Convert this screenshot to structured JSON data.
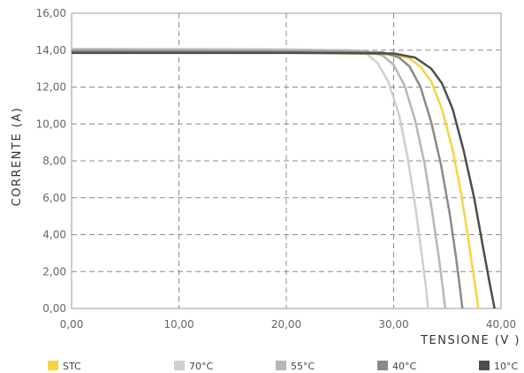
{
  "chart_data": {
    "type": "line",
    "title": "",
    "xlabel": "TENSIONE (V )",
    "ylabel": "CORRENTE (A)",
    "xlim": [
      0,
      40
    ],
    "ylim": [
      0,
      16
    ],
    "x_ticks": [
      "0,00",
      "10,00",
      "20,00",
      "30,00",
      "40,00"
    ],
    "y_ticks": [
      "0,00",
      "2,00",
      "4,00",
      "6,00",
      "8,00",
      "10,00",
      "12,00",
      "14,00",
      "16,00"
    ],
    "grid": true,
    "legend_position": "bottom",
    "series": [
      {
        "name": "STC",
        "color": "#f5d442",
        "points": [
          [
            0,
            13.95
          ],
          [
            20,
            13.88
          ],
          [
            28,
            13.8
          ],
          [
            30,
            13.75
          ],
          [
            31.5,
            13.55
          ],
          [
            32.5,
            13.1
          ],
          [
            33.5,
            12.3
          ],
          [
            34.5,
            10.8
          ],
          [
            35.5,
            8.6
          ],
          [
            36.3,
            6.2
          ],
          [
            37,
            3.6
          ],
          [
            37.5,
            1.6
          ],
          [
            37.9,
            0
          ]
        ]
      },
      {
        "name": "70°C",
        "color": "#cfcfcf",
        "points": [
          [
            0,
            14.08
          ],
          [
            20,
            14.05
          ],
          [
            26,
            14.0
          ],
          [
            27.5,
            13.8
          ],
          [
            28.5,
            13.3
          ],
          [
            29.5,
            12.3
          ],
          [
            30.5,
            10.5
          ],
          [
            31.3,
            8.2
          ],
          [
            32,
            5.6
          ],
          [
            32.6,
            3.0
          ],
          [
            33,
            1.2
          ],
          [
            33.2,
            0
          ]
        ]
      },
      {
        "name": "55°C",
        "color": "#b7b7b7",
        "points": [
          [
            0,
            14.03
          ],
          [
            20,
            14.0
          ],
          [
            27.5,
            13.95
          ],
          [
            29,
            13.7
          ],
          [
            30,
            13.2
          ],
          [
            31,
            12.1
          ],
          [
            32,
            10.2
          ],
          [
            32.9,
            7.8
          ],
          [
            33.6,
            5.2
          ],
          [
            34.2,
            2.8
          ],
          [
            34.6,
            1.0
          ],
          [
            34.8,
            0
          ]
        ]
      },
      {
        "name": "40°C",
        "color": "#8a8a8a",
        "points": [
          [
            0,
            13.95
          ],
          [
            20,
            13.93
          ],
          [
            29,
            13.88
          ],
          [
            30.5,
            13.6
          ],
          [
            31.5,
            13.1
          ],
          [
            32.5,
            12.0
          ],
          [
            33.5,
            10.1
          ],
          [
            34.4,
            7.8
          ],
          [
            35.2,
            5.2
          ],
          [
            35.8,
            2.8
          ],
          [
            36.2,
            1.0
          ],
          [
            36.4,
            0
          ]
        ]
      },
      {
        "name": "10°C",
        "color": "#4d4d4d",
        "points": [
          [
            0,
            13.85
          ],
          [
            20,
            13.85
          ],
          [
            30,
            13.82
          ],
          [
            32,
            13.6
          ],
          [
            33.5,
            13.0
          ],
          [
            34.5,
            12.2
          ],
          [
            35.5,
            10.8
          ],
          [
            36.5,
            8.6
          ],
          [
            37.5,
            6.0
          ],
          [
            38.3,
            3.4
          ],
          [
            39,
            1.2
          ],
          [
            39.4,
            0
          ]
        ]
      }
    ]
  }
}
